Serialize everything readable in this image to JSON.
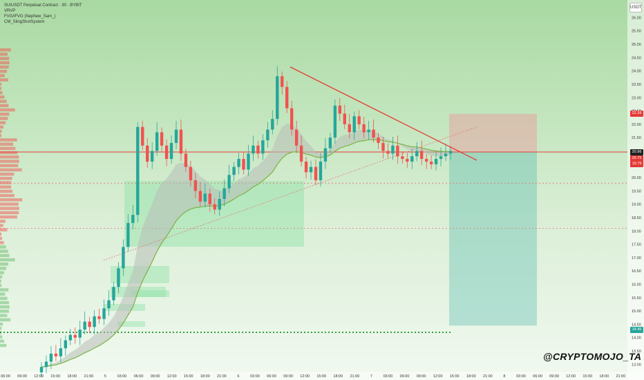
{
  "header": {
    "title": "SUIUSDT Perpetual Contract · 30 · BYBIT",
    "indicators": [
      "VRVP",
      "FVG/iFVG (Nephew_Sam_)",
      "CM_SlingShotSystem"
    ]
  },
  "currency": "USDT",
  "watermark": "@CRYPTOMOJO_TA",
  "price_tags": {
    "target": "22.39",
    "current": "20.96",
    "ask": "20.75",
    "bid": "19.79",
    "stop": "14.45"
  },
  "colors": {
    "up": "#26a69a",
    "down": "#ef5350",
    "trendline": "#e53935",
    "level_line": "#e53935",
    "support_dots": "#2e9c3a",
    "ribbon_fill": "#b8bdb8",
    "ribbon_line": "#7cb342",
    "risk_box": "#e8a0a0",
    "reward_box": "#4db6ac",
    "tag_red": "#e53935",
    "tag_green": "#26a69a"
  },
  "chart_data": {
    "type": "candlestick",
    "title": "SUIUSDT Perpetual Contract · 30 · BYBIT",
    "y_ticks": [
      "26.00",
      "25.50",
      "25.00",
      "24.50",
      "24.00",
      "23.50",
      "23.00",
      "22.50",
      "22.00",
      "21.50",
      "21.00",
      "20.50",
      "20.00",
      "19.50",
      "19.00",
      "18.50",
      "18.00",
      "17.50",
      "17.00",
      "16.50",
      "16.00",
      "15.50",
      "15.00",
      "14.50",
      "14.00",
      "13.50",
      "13.00"
    ],
    "x_ticks": [
      "06:00",
      "09:00",
      "12:00",
      "15:00",
      "18:00",
      "21:00",
      "5",
      "03:00",
      "06:00",
      "09:00",
      "12:00",
      "15:00",
      "18:00",
      "21:00",
      "6",
      "03:00",
      "06:00",
      "09:00",
      "12:00",
      "15:00",
      "18:00",
      "21:00",
      "7",
      "03:00",
      "06:00",
      "09:00",
      "12:00",
      "15:00",
      "18:00",
      "21:00",
      "8",
      "03:00",
      "06:00",
      "09:00",
      "12:00",
      "15:00",
      "18:00",
      "21:00"
    ],
    "ylim": [
      12.8,
      26.4
    ],
    "key_prices": {
      "resistance_level": 20.96,
      "support_level": 14.2,
      "dotted_level_1": 19.79,
      "dotted_level_2": 18.1
    },
    "position": {
      "entry": 20.96,
      "target": 22.39,
      "stop_side": 14.45
    },
    "trendline": {
      "from": {
        "x_index": 0,
        "price": 24.15
      },
      "to": {
        "x_index": 1,
        "price": 20.65
      }
    },
    "candle_closes": [
      12.9,
      13.1,
      13.4,
      13.3,
      13.6,
      13.9,
      14.1,
      14.0,
      14.3,
      14.6,
      14.4,
      14.8,
      14.7,
      15.1,
      15.4,
      15.9,
      16.6,
      17.4,
      18.3,
      18.6,
      21.9,
      21.2,
      20.6,
      21.0,
      21.7,
      21.2,
      20.7,
      21.3,
      21.8,
      20.9,
      20.4,
      19.9,
      19.5,
      19.1,
      19.4,
      19.0,
      18.8,
      19.2,
      19.6,
      20.1,
      20.4,
      20.7,
      20.3,
      20.9,
      21.2,
      20.9,
      21.4,
      21.8,
      22.2,
      23.8,
      23.4,
      22.6,
      21.8,
      21.2,
      20.6,
      20.2,
      20.4,
      19.9,
      20.6,
      21.1,
      21.5,
      22.7,
      22.4,
      22.0,
      21.7,
      22.3,
      22.0,
      21.7,
      21.8,
      21.5,
      21.3,
      21.0,
      20.9,
      21.2,
      20.8,
      20.7,
      20.6,
      20.8,
      21.0,
      20.7,
      20.6,
      20.5,
      20.7,
      20.8,
      20.9,
      21.0
    ]
  }
}
